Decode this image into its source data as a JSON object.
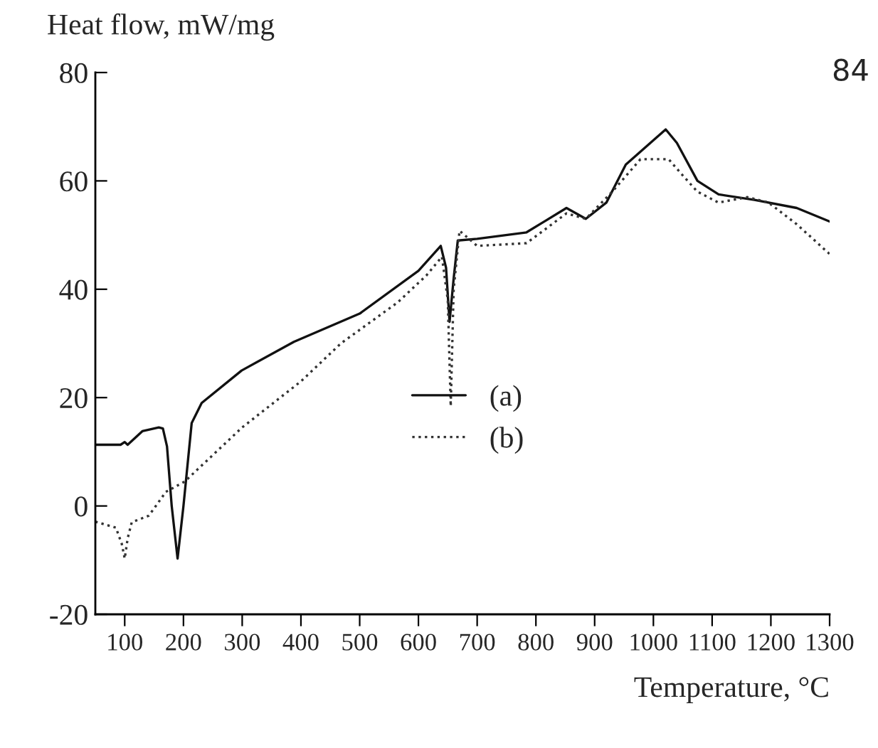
{
  "chart_data": {
    "type": "line",
    "xlabel": "Temperature, °C",
    "ylabel": "Heat flow, mW/mg",
    "annotations": [
      "84"
    ],
    "xlim": [
      50,
      1300
    ],
    "ylim": [
      -20,
      80
    ],
    "xticks": [
      100,
      200,
      300,
      400,
      500,
      600,
      700,
      800,
      900,
      1000,
      1100,
      1200,
      1300
    ],
    "yticks": [
      -20,
      0,
      20,
      40,
      60,
      80
    ],
    "grid": false,
    "legend": "right",
    "marker": "none",
    "series": [
      {
        "name": "(a)",
        "color": "#111111",
        "line_style": "solid",
        "x": [
          50,
          93,
          100,
          105,
          130,
          158,
          165,
          172,
          180,
          190,
          200,
          214,
          231,
          299,
          388,
          500,
          600,
          638,
          647,
          653,
          660,
          667,
          700,
          784,
          852,
          885,
          920,
          953,
          1000,
          1021,
          1040,
          1075,
          1111,
          1172,
          1244,
          1300
        ],
        "values": [
          11.3,
          11.3,
          11.8,
          11.3,
          13.8,
          14.5,
          14.3,
          11,
          0,
          -9.7,
          0,
          15.3,
          19,
          25,
          30.3,
          35.5,
          43.4,
          48,
          44,
          34,
          42,
          49,
          49.3,
          50.5,
          55,
          53,
          56,
          63,
          67.5,
          69.5,
          67,
          60,
          57.5,
          56.5,
          55,
          52.5
        ]
      },
      {
        "name": "(b)",
        "color": "#333333",
        "line_style": "dotted",
        "x": [
          50,
          85,
          95,
          100,
          105,
          112,
          141,
          153,
          170,
          202,
          300,
          400,
          468,
          565,
          614,
          640,
          650,
          655,
          660,
          670,
          700,
          784,
          852,
          885,
          930,
          978,
          1026,
          1050,
          1075,
          1111,
          1160,
          1196,
          1244,
          1300
        ],
        "values": [
          -2.9,
          -4,
          -7,
          -9.7,
          -6,
          -3,
          -1.8,
          0,
          2.6,
          4.5,
          14.5,
          23,
          30,
          37.6,
          42.6,
          46,
          38,
          18.4,
          40,
          50.8,
          48,
          48.5,
          54,
          53,
          58,
          64,
          64,
          61,
          58,
          56,
          57,
          56,
          52,
          46.5
        ]
      }
    ]
  }
}
